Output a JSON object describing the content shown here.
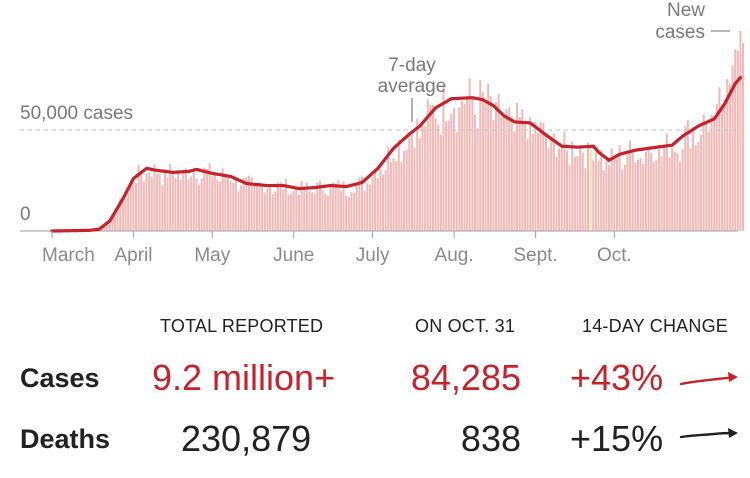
{
  "colors": {
    "bar": "#f2b8b8",
    "avg_line": "#c5222b",
    "highlight_bar": "#f6dfa5",
    "grid": "#c9c9c9",
    "tick": "#8a8a8a",
    "cases_text": "#c5222b",
    "deaths_text": "#222222"
  },
  "chart_data": {
    "type": "bar",
    "title": "",
    "xlabel": "",
    "ylabel": "",
    "ylim": [
      0,
      85000
    ],
    "yticks": [
      {
        "value": 0,
        "label": "0"
      },
      {
        "value": 50000,
        "label": "50,000 cases"
      }
    ],
    "xticks": [
      {
        "day": 0,
        "label": "March"
      },
      {
        "day": 31,
        "label": "April"
      },
      {
        "day": 61,
        "label": "May"
      },
      {
        "day": 92,
        "label": "June"
      },
      {
        "day": 122,
        "label": "July"
      },
      {
        "day": 153,
        "label": "Aug."
      },
      {
        "day": 184,
        "label": "Sept."
      },
      {
        "day": 214,
        "label": "Oct."
      }
    ],
    "start_day": 0,
    "end_day": 244,
    "highlight_day": 205,
    "avg_keypoints": [
      [
        0,
        0
      ],
      [
        14,
        300
      ],
      [
        18,
        900
      ],
      [
        22,
        5000
      ],
      [
        27,
        16000
      ],
      [
        31,
        26000
      ],
      [
        36,
        31000
      ],
      [
        40,
        30000
      ],
      [
        46,
        29000
      ],
      [
        52,
        29500
      ],
      [
        55,
        30500
      ],
      [
        61,
        28500
      ],
      [
        68,
        27000
      ],
      [
        74,
        23500
      ],
      [
        82,
        22500
      ],
      [
        88,
        22500
      ],
      [
        94,
        21000
      ],
      [
        100,
        21500
      ],
      [
        106,
        22500
      ],
      [
        112,
        22000
      ],
      [
        118,
        24000
      ],
      [
        124,
        31000
      ],
      [
        130,
        41000
      ],
      [
        136,
        48000
      ],
      [
        140,
        52000
      ],
      [
        146,
        61000
      ],
      [
        152,
        65500
      ],
      [
        160,
        66000
      ],
      [
        164,
        65000
      ],
      [
        168,
        62000
      ],
      [
        172,
        57000
      ],
      [
        176,
        54000
      ],
      [
        182,
        53500
      ],
      [
        188,
        47500
      ],
      [
        194,
        42000
      ],
      [
        200,
        41500
      ],
      [
        206,
        42000
      ],
      [
        208,
        39000
      ],
      [
        212,
        35000
      ],
      [
        216,
        38000
      ],
      [
        222,
        40000
      ],
      [
        230,
        41500
      ],
      [
        236,
        42500
      ],
      [
        240,
        47000
      ],
      [
        246,
        52000
      ],
      [
        252,
        55500
      ],
      [
        256,
        63000
      ],
      [
        260,
        73000
      ],
      [
        262,
        76000
      ]
    ],
    "series": [
      {
        "name": "New cases",
        "kind": "bar",
        "values_note": "daily values fluctuate around the 7-day average"
      },
      {
        "name": "7-day average",
        "kind": "line"
      }
    ],
    "annotations": [
      {
        "text_lines": [
          "7-day",
          "average"
        ],
        "points_to": "avg_line",
        "day": 140
      },
      {
        "text_lines": [
          "New",
          "cases"
        ],
        "points_to": "bars",
        "day": 262
      }
    ]
  },
  "stats": {
    "headers": {
      "total": "TOTAL REPORTED",
      "on_date": "ON OCT. 31",
      "change": "14-DAY CHANGE"
    },
    "cases": {
      "label": "Cases",
      "total": "9.2 million+",
      "on_date": "84,285",
      "change": "+43%"
    },
    "deaths": {
      "label": "Deaths",
      "total": "230,879",
      "on_date": "838",
      "change": "+15%"
    }
  }
}
